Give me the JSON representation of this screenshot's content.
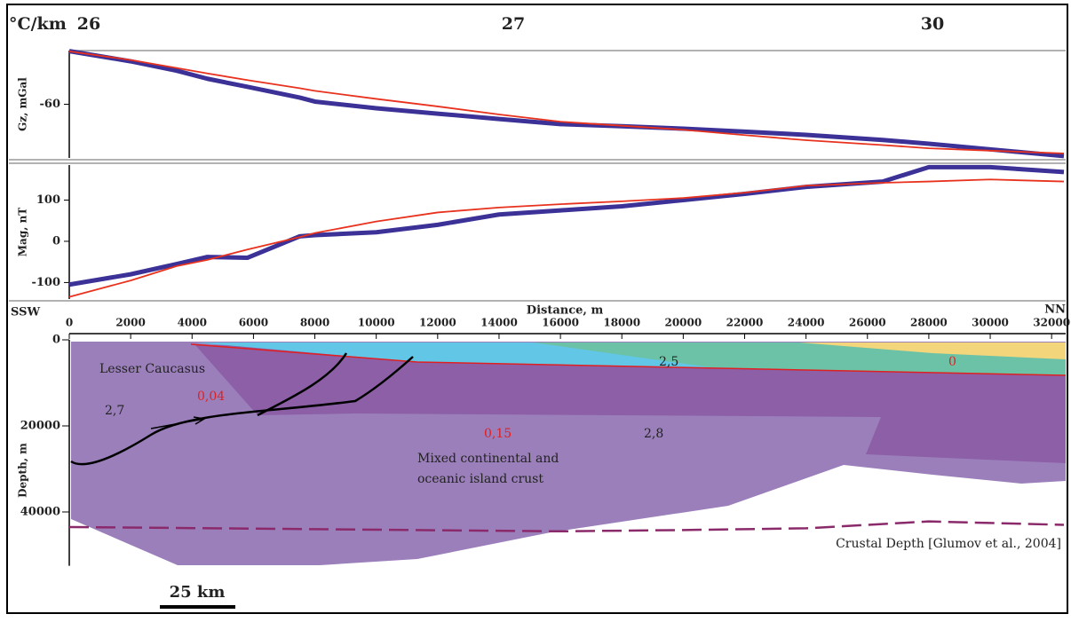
{
  "header": {
    "unit": "°C/km",
    "stations": [
      "26",
      "27",
      "30"
    ]
  },
  "chart_data": [
    {
      "type": "line",
      "ylabel": "Gz, mGal",
      "xlim": [
        0,
        32400
      ],
      "ylim": [
        -80,
        -40
      ],
      "yticks": [
        -60
      ],
      "x": [
        0,
        2000,
        3500,
        4500,
        5800,
        7500,
        8000,
        10000,
        12000,
        14000,
        16000,
        18000,
        20000,
        22000,
        24000,
        26500,
        28000,
        30000,
        32400
      ],
      "series": [
        {
          "color": "#3b3197",
          "values": [
            -40.2,
            -44,
            -47.5,
            -50.5,
            -53.5,
            -57.5,
            -59,
            -61.5,
            -63.5,
            -65.5,
            -67.4,
            -68.2,
            -69.1,
            -70.2,
            -71.4,
            -73.3,
            -74.7,
            -76.8,
            -79.3
          ]
        },
        {
          "color": "#e8321e",
          "values": [
            -40.3,
            -43.5,
            -46.5,
            -48.5,
            -51,
            -54,
            -55,
            -58,
            -60.8,
            -63.8,
            -66.5,
            -68,
            -69.5,
            -71.5,
            -73.4,
            -75.2,
            -76.4,
            -77.3,
            -78.3
          ]
        }
      ]
    },
    {
      "type": "line",
      "ylabel": "Mag, nT",
      "xlim": [
        0,
        32400
      ],
      "ylim": [
        -140,
        185
      ],
      "yticks": [
        -100,
        0,
        100
      ],
      "x": [
        0,
        2000,
        3500,
        4500,
        5800,
        7500,
        8000,
        10000,
        12000,
        14000,
        16000,
        18000,
        20000,
        22000,
        24000,
        26500,
        28000,
        30000,
        32400
      ],
      "series": [
        {
          "color": "#3b3197",
          "values": [
            -105,
            -80,
            -55,
            -38,
            -40,
            12,
            15,
            22,
            40,
            65,
            75,
            85,
            100,
            115,
            132,
            145,
            180,
            180,
            168
          ]
        },
        {
          "color": "#e8321e",
          "values": [
            -135,
            -95,
            -60,
            -45,
            -20,
            10,
            20,
            48,
            70,
            82,
            90,
            97,
            105,
            118,
            135,
            142,
            145,
            150,
            145
          ]
        }
      ]
    },
    {
      "type": "section",
      "xlabel": "Distance, m",
      "left_label": "SSW",
      "right_label": "NN",
      "ylabel": "Depth, m",
      "xlim": [
        0,
        32400
      ],
      "xticks": [
        0,
        2000,
        4000,
        6000,
        8000,
        10000,
        12000,
        14000,
        16000,
        18000,
        20000,
        22000,
        24000,
        26000,
        28000,
        30000,
        32000
      ],
      "ylim": [
        0,
        52500
      ],
      "yticks": [
        0,
        20000,
        40000
      ],
      "series": [
        {
          "name": "Crustal Depth [Glumov et al., 2004]",
          "color": "#8b2a6b",
          "x": [
            0,
            8000,
            16000,
            20000,
            24000,
            28000,
            32400
          ],
          "values": [
            43500,
            44000,
            44500,
            44200,
            43800,
            42200,
            43000
          ]
        }
      ],
      "annotations": [
        "Lesser Caucasus",
        "0,04",
        "2,7",
        "0,15",
        "2,8",
        "2,5",
        "0",
        "Mixed continental and",
        "oceanic island crust"
      ]
    }
  ],
  "scale_bar": "25 km"
}
